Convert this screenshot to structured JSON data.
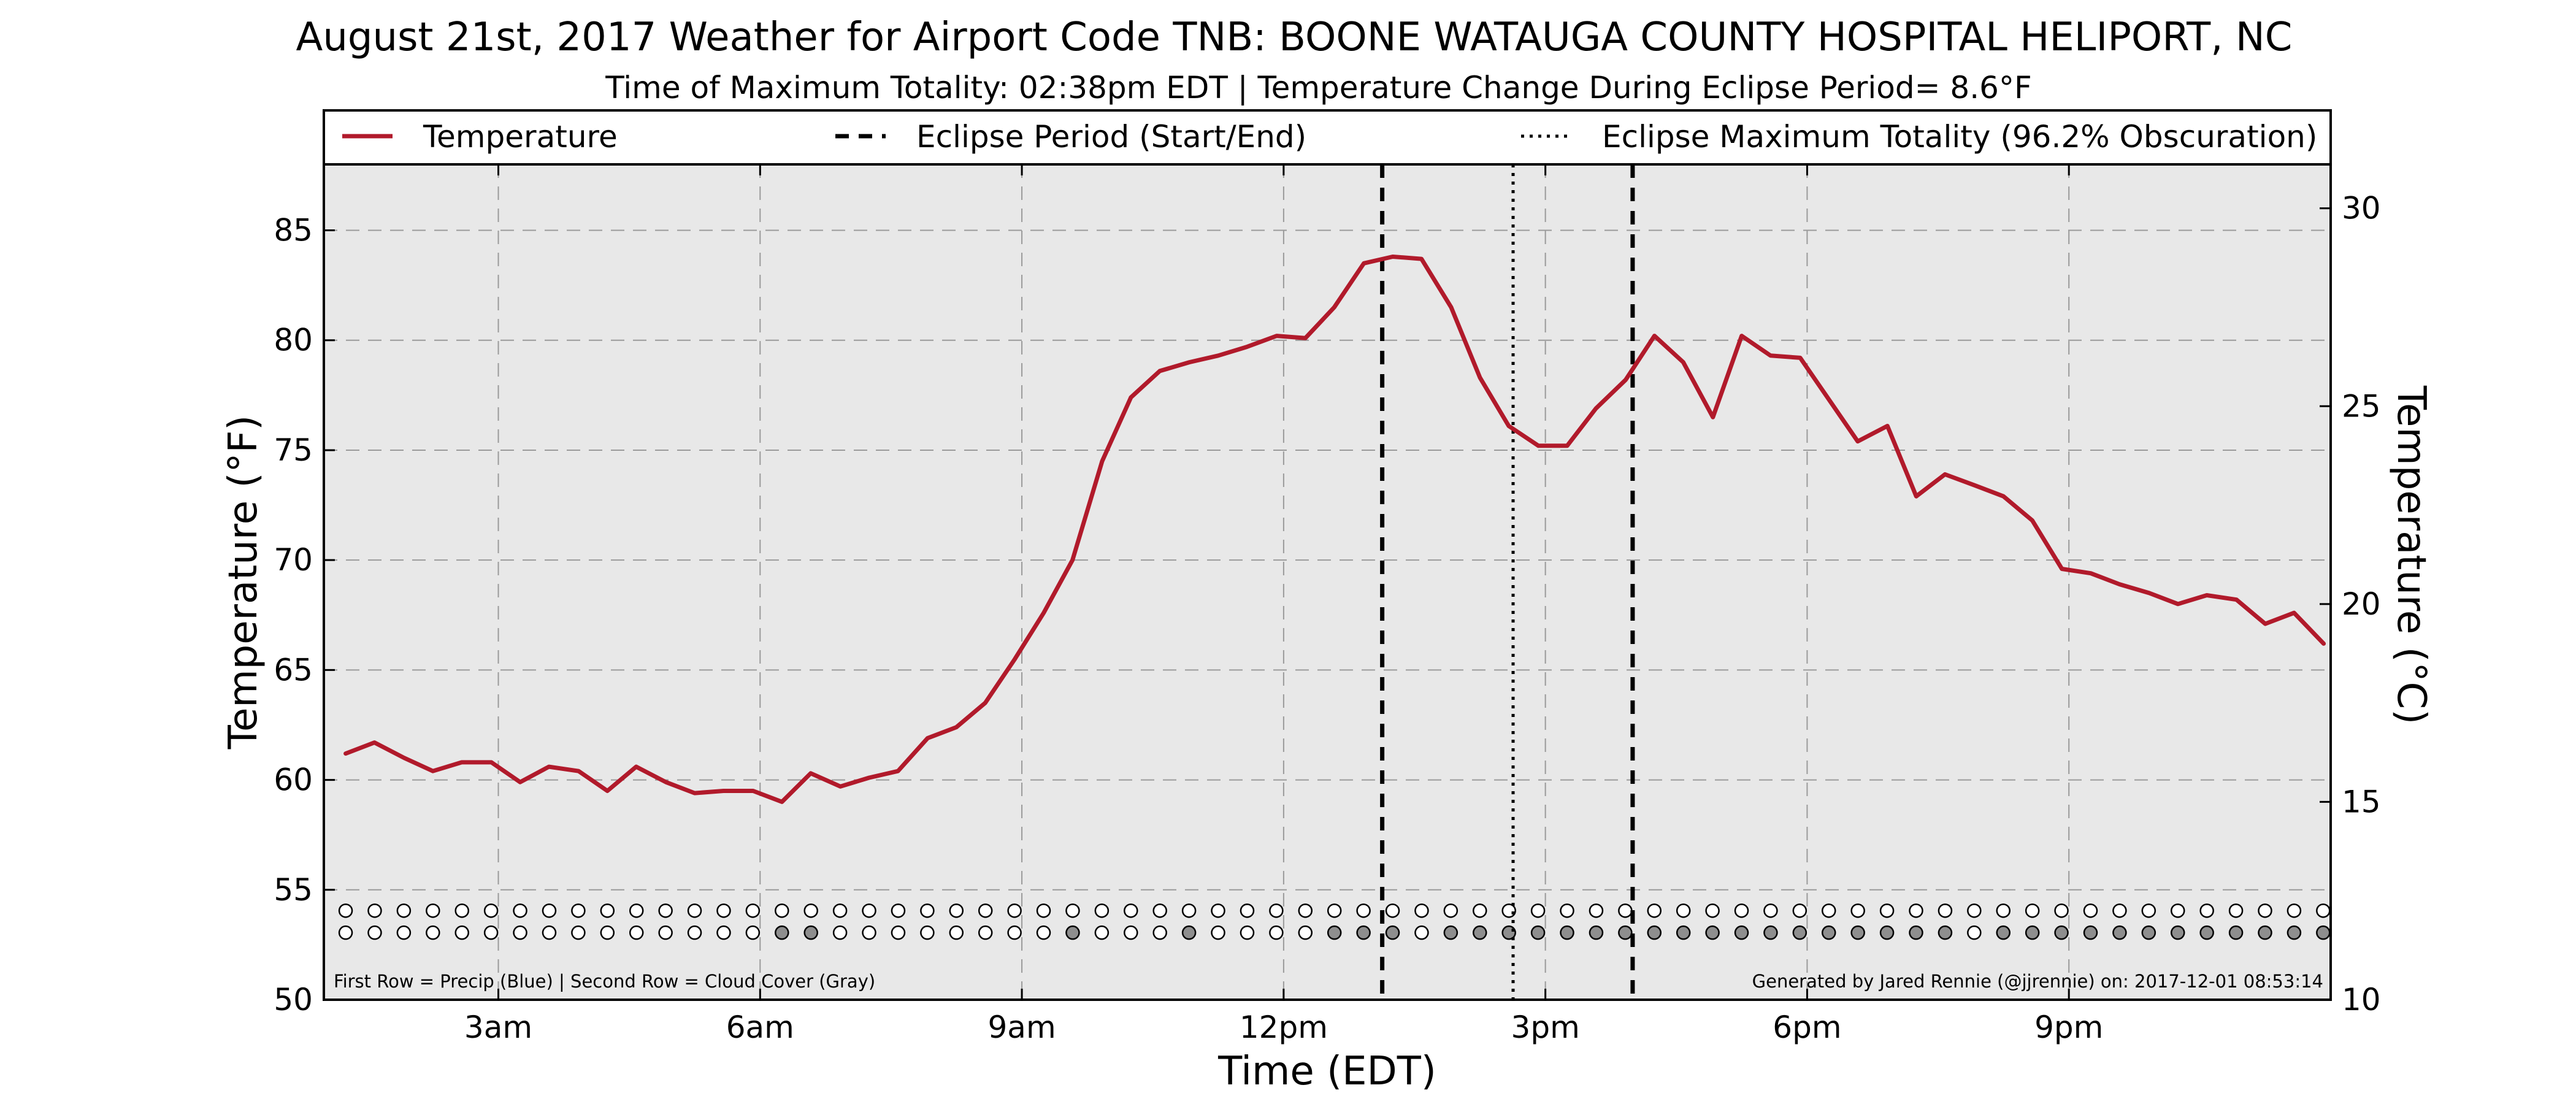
{
  "chart_data": {
    "type": "line",
    "title": "August 21st, 2017 Weather for Airport Code TNB: BOONE WATAUGA COUNTY HOSPITAL HELIPORT, NC",
    "subtitle": "Time of Maximum Totality: 02:38pm EDT | Temperature Change During Eclipse Period= 8.6°F",
    "xlabel": "Time (EDT)",
    "ylabel": "Temperature (°F)",
    "ylabel_right": "Temperature (°C)",
    "xlim": [
      1.0,
      24.0
    ],
    "ylim": [
      50,
      88
    ],
    "ylim_right_c": [
      10,
      31.111
    ],
    "x_ticks": [
      {
        "value": 3,
        "label": "3am"
      },
      {
        "value": 6,
        "label": "6am"
      },
      {
        "value": 9,
        "label": "9am"
      },
      {
        "value": 12,
        "label": "12pm"
      },
      {
        "value": 15,
        "label": "3pm"
      },
      {
        "value": 18,
        "label": "6pm"
      },
      {
        "value": 21,
        "label": "9pm"
      }
    ],
    "y_ticks": [
      50,
      55,
      60,
      65,
      70,
      75,
      80,
      85
    ],
    "y_ticks_right": [
      10,
      15,
      20,
      25,
      30
    ],
    "grid": true,
    "legend_position": "top",
    "legend": [
      {
        "label": "Temperature",
        "style": "solid",
        "color": "#b11a2b"
      },
      {
        "label": "Eclipse Period (Start/End)",
        "style": "dashed",
        "color": "#000000"
      },
      {
        "label": "Eclipse Maximum Totality (96.2% Obscuration)",
        "style": "dotted",
        "color": "#000000"
      }
    ],
    "series": [
      {
        "name": "Temperature",
        "color": "#b11a2b",
        "x": [
          1.25,
          1.58,
          1.92,
          2.25,
          2.58,
          2.92,
          3.25,
          3.58,
          3.92,
          4.25,
          4.58,
          4.92,
          5.25,
          5.58,
          5.92,
          6.25,
          6.58,
          6.92,
          7.25,
          7.58,
          7.92,
          8.25,
          8.58,
          8.92,
          9.25,
          9.58,
          9.92,
          10.25,
          10.58,
          10.92,
          11.25,
          11.58,
          11.92,
          12.25,
          12.58,
          12.92,
          13.25,
          13.58,
          13.92,
          14.25,
          14.58,
          14.92,
          15.25,
          15.58,
          15.92,
          16.25,
          16.58,
          16.92,
          17.25,
          17.58,
          17.92,
          18.25,
          18.58,
          18.92,
          19.25,
          19.58,
          19.92,
          20.25,
          20.58,
          20.92,
          21.25,
          21.58,
          21.92,
          22.25,
          22.58,
          22.92,
          23.25,
          23.58,
          23.92
        ],
        "values": [
          61.2,
          61.7,
          61.0,
          60.4,
          60.8,
          60.8,
          59.9,
          60.6,
          60.4,
          59.5,
          60.6,
          59.9,
          59.4,
          59.5,
          59.5,
          59.0,
          60.3,
          59.7,
          60.1,
          60.4,
          61.9,
          62.4,
          63.5,
          65.5,
          67.6,
          70.0,
          74.5,
          77.4,
          78.6,
          79.0,
          79.3,
          79.7,
          80.2,
          80.1,
          81.5,
          83.5,
          83.8,
          83.7,
          81.5,
          78.3,
          76.1,
          75.2,
          75.2,
          76.9,
          78.2,
          80.2,
          79.0,
          76.5,
          80.2,
          79.3,
          79.2,
          77.3,
          75.4,
          76.1,
          72.9,
          73.9,
          73.4,
          72.9,
          71.8,
          69.6,
          69.4,
          68.9,
          68.5,
          68.0,
          68.4,
          68.2,
          67.1,
          67.6,
          66.2
        ]
      }
    ],
    "eclipse_start_x": 13.13,
    "eclipse_end_x": 16.0,
    "eclipse_max_x": 14.63,
    "dot_rows": {
      "x_start": 1.25,
      "x_step": 0.3333,
      "count": 69,
      "precip": [],
      "cloud_cover_filled": [
        15,
        16,
        25,
        29,
        34,
        35,
        36,
        38,
        39,
        40,
        41,
        42,
        43,
        44,
        45,
        46,
        47,
        48,
        49,
        50,
        51,
        52,
        53,
        54,
        55,
        57,
        58,
        59,
        60,
        61,
        62,
        63,
        64,
        65,
        66,
        67,
        68
      ]
    },
    "notes": {
      "left": "First Row = Precip (Blue) | Second Row = Cloud Cover (Gray)",
      "right": "Generated by Jared Rennie (@jjrennie) on: 2017-12-01 08:53:14"
    }
  }
}
